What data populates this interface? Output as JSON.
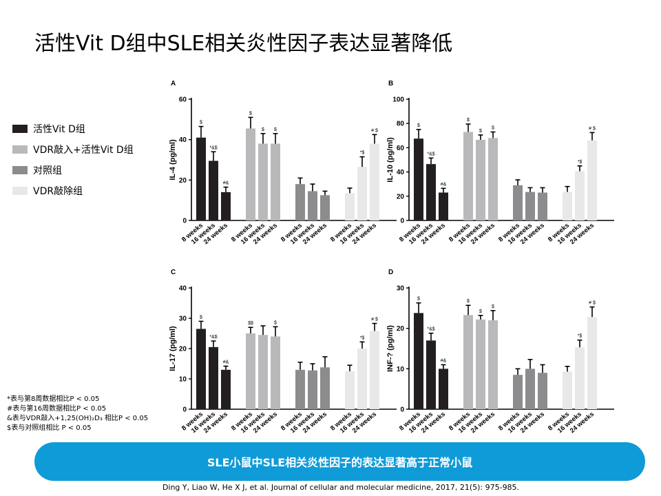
{
  "slide": {
    "title": "活性Vit D组中SLE相关炎性因子表达显著降低",
    "banner": "SLE小鼠中SLE相关炎性因子的表达显著高于正常小鼠",
    "citation": "Ding Y,  Liao W, He X J, et al. Journal of cellular and molecular medicine, 2017, 21(5): 975-985.",
    "notes": [
      "*表与第8周数据相比P < 0.05",
      "#表与第16周数据相比P < 0.05",
      "&表与VDR敲入+1,25(OH)₂D₃ 相比P < 0.05",
      "$表与对照组相比 P < 0.05"
    ]
  },
  "legend": [
    {
      "label": "活性Vit D组",
      "color": "#231f20"
    },
    {
      "label": "VDR敲入+活性Vit D组",
      "color": "#b9b9bb"
    },
    {
      "label": "对照组",
      "color": "#8c8c8e"
    },
    {
      "label": "VDR敲除组",
      "color": "#e8e8e9"
    }
  ],
  "chart_data": [
    {
      "type": "bar",
      "panel": "A",
      "ylabel": "IL-4 (pg/ml)",
      "ylim": [
        0,
        60
      ],
      "yticks": [
        0,
        20,
        40,
        60
      ],
      "categories": [
        "8 weeks",
        "16 weeks",
        "24 weeks"
      ],
      "series": [
        {
          "values": [
            41,
            29.5,
            14
          ],
          "errors": [
            5.5,
            4.5,
            2.5
          ],
          "annotations": [
            "$",
            "*&$",
            "#&"
          ]
        },
        {
          "values": [
            45.5,
            38,
            38
          ],
          "errors": [
            5.5,
            5,
            5
          ],
          "annotations": [
            "$",
            "$",
            "$"
          ]
        },
        {
          "values": [
            18,
            14.5,
            12.5
          ],
          "errors": [
            3,
            3.5,
            2
          ],
          "annotations": [
            "",
            "",
            ""
          ]
        },
        {
          "values": [
            13.5,
            26.5,
            38
          ],
          "errors": [
            2.5,
            5,
            4.5
          ],
          "annotations": [
            "",
            "*$",
            "# $"
          ]
        }
      ]
    },
    {
      "type": "bar",
      "panel": "B",
      "ylabel": "IL-10 (pg/ml)",
      "ylim": [
        0,
        100
      ],
      "yticks": [
        0,
        20,
        40,
        60,
        80,
        100
      ],
      "categories": [
        "8 weeks",
        "16 weeks",
        "24 weeks"
      ],
      "series": [
        {
          "values": [
            67.5,
            46.5,
            23
          ],
          "errors": [
            7.5,
            5,
            3.5
          ],
          "annotations": [
            "$",
            "*&$",
            "#&"
          ]
        },
        {
          "values": [
            73,
            66.5,
            68
          ],
          "errors": [
            6.5,
            4,
            5
          ],
          "annotations": [
            "$",
            "$",
            "$"
          ]
        },
        {
          "values": [
            29,
            23.5,
            23
          ],
          "errors": [
            4.5,
            3.5,
            4
          ],
          "annotations": [
            "",
            "",
            ""
          ]
        },
        {
          "values": [
            23.5,
            40.5,
            66
          ],
          "errors": [
            4.5,
            4.5,
            6.5
          ],
          "annotations": [
            "",
            "*$",
            "# $"
          ]
        }
      ]
    },
    {
      "type": "bar",
      "panel": "C",
      "ylabel": "IL-17 (pg/ml)",
      "ylim": [
        0,
        40
      ],
      "yticks": [
        0,
        10,
        20,
        30,
        40
      ],
      "categories": [
        "8 weeks",
        "16 weeks",
        "24 weeks"
      ],
      "series": [
        {
          "values": [
            26.5,
            20.5,
            13
          ],
          "errors": [
            2.5,
            2,
            1.2
          ],
          "annotations": [
            "$",
            "*&$",
            "#&"
          ]
        },
        {
          "values": [
            25,
            24.5,
            24
          ],
          "errors": [
            2,
            3,
            3.2
          ],
          "annotations": [
            "$$",
            "",
            "$"
          ]
        },
        {
          "values": [
            13,
            12.8,
            13.8
          ],
          "errors": [
            2.5,
            2.2,
            3.5
          ],
          "annotations": [
            "",
            "",
            ""
          ]
        },
        {
          "values": [
            12.5,
            20,
            25.8
          ],
          "errors": [
            2,
            2.2,
            2.5
          ],
          "annotations": [
            "",
            "*$",
            "# $"
          ]
        }
      ]
    },
    {
      "type": "bar",
      "panel": "D",
      "ylabel": "INF-? (pg/ml)",
      "ylim": [
        0,
        30
      ],
      "yticks": [
        0,
        10,
        20,
        30
      ],
      "categories": [
        "8 weeks",
        "16 weeks",
        "24 weeks"
      ],
      "series": [
        {
          "values": [
            23.8,
            17,
            10
          ],
          "errors": [
            2.5,
            1.8,
            1
          ],
          "annotations": [
            "$",
            "*&$",
            "#&"
          ]
        },
        {
          "values": [
            23.3,
            22.2,
            22
          ],
          "errors": [
            2.4,
            1,
            2.4
          ],
          "annotations": [
            "$",
            "$",
            "$"
          ]
        },
        {
          "values": [
            8.5,
            10,
            9
          ],
          "errors": [
            1.5,
            2.3,
            2
          ],
          "annotations": [
            "",
            "",
            ""
          ]
        },
        {
          "values": [
            9.3,
            15.3,
            22.8
          ],
          "errors": [
            1.3,
            1.8,
            2.5
          ],
          "annotations": [
            "",
            "*$",
            "# $"
          ]
        }
      ]
    }
  ]
}
